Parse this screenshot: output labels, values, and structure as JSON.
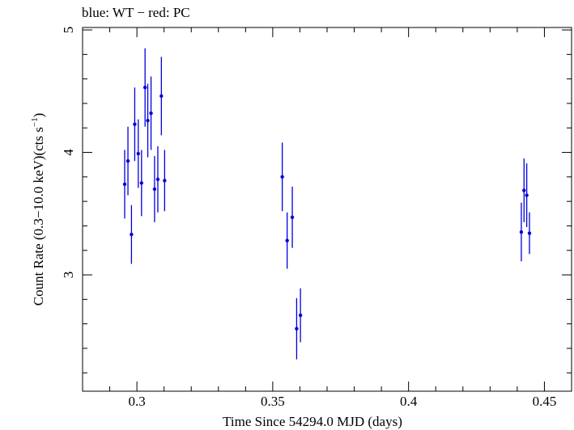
{
  "chart_data": {
    "type": "scatter",
    "title": "blue: WT − red: PC",
    "xlabel": "Time Since 54294.0 MJD (days)",
    "ylabel_main": "Count Rate (0.3−10.0 keV)(cts s",
    "ylabel_sup": "−1",
    "ylabel_close": ")",
    "xlim": [
      0.28,
      0.46
    ],
    "ylim": [
      2.05,
      5.02
    ],
    "x_ticks": [
      {
        "value": 0.3,
        "label": "0.3"
      },
      {
        "value": 0.35,
        "label": "0.35"
      },
      {
        "value": 0.4,
        "label": "0.4"
      },
      {
        "value": 0.45,
        "label": "0.45"
      }
    ],
    "y_ticks": [
      {
        "value": 3,
        "label": "3"
      },
      {
        "value": 4,
        "label": "4"
      },
      {
        "value": 5,
        "label": "5"
      }
    ],
    "series": [
      {
        "color": "#0000dd",
        "points": [
          {
            "x": 0.2955,
            "y": 3.74,
            "err": 0.28
          },
          {
            "x": 0.2967,
            "y": 3.93,
            "err": 0.28
          },
          {
            "x": 0.298,
            "y": 3.33,
            "err": 0.24
          },
          {
            "x": 0.2992,
            "y": 4.23,
            "err": 0.3
          },
          {
            "x": 0.3005,
            "y": 3.99,
            "err": 0.28
          },
          {
            "x": 0.3017,
            "y": 3.75,
            "err": 0.27
          },
          {
            "x": 0.303,
            "y": 4.53,
            "err": 0.32
          },
          {
            "x": 0.304,
            "y": 4.26,
            "err": 0.3
          },
          {
            "x": 0.3052,
            "y": 4.32,
            "err": 0.3
          },
          {
            "x": 0.3065,
            "y": 3.7,
            "err": 0.27
          },
          {
            "x": 0.3077,
            "y": 3.78,
            "err": 0.27
          },
          {
            "x": 0.309,
            "y": 4.46,
            "err": 0.32
          },
          {
            "x": 0.3102,
            "y": 3.77,
            "err": 0.25
          },
          {
            "x": 0.3535,
            "y": 3.8,
            "err": 0.28
          },
          {
            "x": 0.3553,
            "y": 3.28,
            "err": 0.23
          },
          {
            "x": 0.3572,
            "y": 3.47,
            "err": 0.25
          },
          {
            "x": 0.3588,
            "y": 2.56,
            "err": 0.25
          },
          {
            "x": 0.3602,
            "y": 2.67,
            "err": 0.22
          },
          {
            "x": 0.4415,
            "y": 3.35,
            "err": 0.24
          },
          {
            "x": 0.4425,
            "y": 3.69,
            "err": 0.26
          },
          {
            "x": 0.4435,
            "y": 3.65,
            "err": 0.26
          },
          {
            "x": 0.4445,
            "y": 3.34,
            "err": 0.17
          }
        ]
      }
    ]
  }
}
